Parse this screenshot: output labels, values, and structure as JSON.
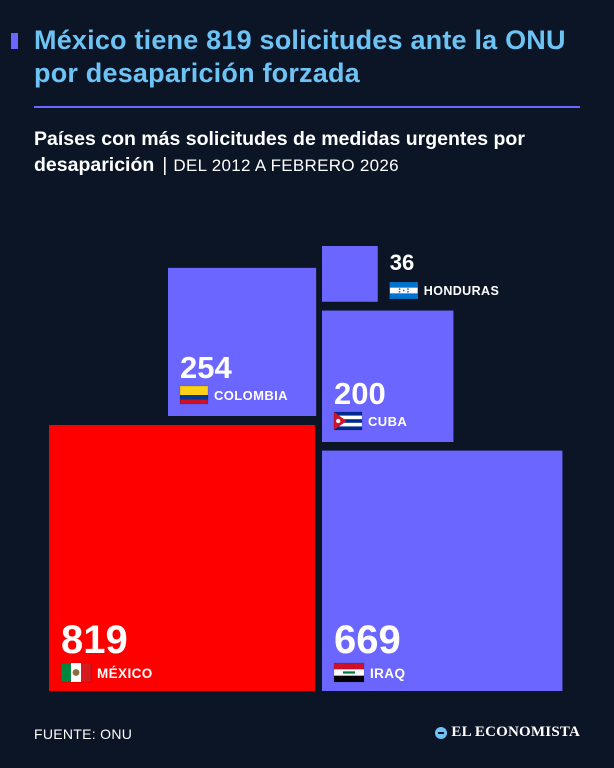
{
  "header": {
    "title": "México tiene 819 solicitudes ante la ONU por desaparición forzada",
    "subtitle": "Países con más solicitudes de medidas urgentes por desaparición",
    "separator": "|",
    "date_range": "DEL 2012 A FEBRERO 2026"
  },
  "footer": {
    "source": "FUENTE: ONU",
    "brand": "EL ECONOMISTA"
  },
  "colors": {
    "background": "#0b1526",
    "title": "#6ec3f5",
    "accent": "#6a66ff",
    "highlight": "#ff0000"
  },
  "chart_data": {
    "type": "proportional-square",
    "unit": "solicitudes",
    "items": [
      {
        "country": "MÉXICO",
        "value": 819,
        "color": "#ff0000",
        "flag": "mexico-flag"
      },
      {
        "country": "IRAQ",
        "value": 669,
        "color": "#6a66ff",
        "flag": "iraq-flag"
      },
      {
        "country": "COLOMBIA",
        "value": 254,
        "color": "#6a66ff",
        "flag": "colombia-flag"
      },
      {
        "country": "CUBA",
        "value": 200,
        "color": "#6a66ff",
        "flag": "cuba-flag"
      },
      {
        "country": "HONDURAS",
        "value": 36,
        "color": "#6a66ff",
        "flag": "honduras-flag"
      }
    ]
  }
}
